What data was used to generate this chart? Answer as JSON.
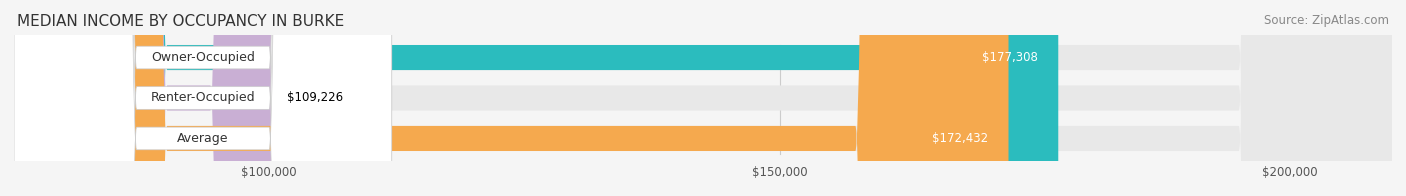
{
  "title": "MEDIAN INCOME BY OCCUPANCY IN BURKE",
  "source": "Source: ZipAtlas.com",
  "categories": [
    "Owner-Occupied",
    "Renter-Occupied",
    "Average"
  ],
  "values": [
    177308,
    109226,
    172432
  ],
  "bar_colors": [
    "#2bbcbe",
    "#c9afd4",
    "#f5a94e"
  ],
  "label_colors": [
    "white",
    "black",
    "white"
  ],
  "value_labels": [
    "$177,308",
    "$109,226",
    "$172,432"
  ],
  "xmin": 75000,
  "xmax": 210000,
  "xticks": [
    100000,
    150000,
    200000
  ],
  "xtick_labels": [
    "$100,000",
    "$150,000",
    "$200,000"
  ],
  "background_color": "#f5f5f5",
  "bar_background_color": "#e8e8e8",
  "title_fontsize": 11,
  "source_fontsize": 8.5
}
